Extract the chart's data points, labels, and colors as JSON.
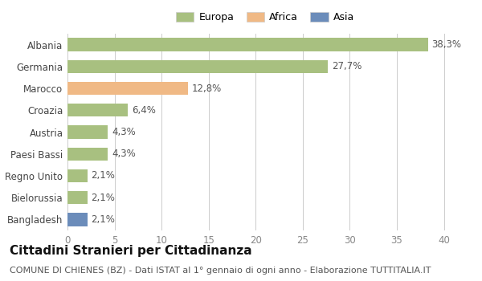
{
  "categories": [
    "Bangladesh",
    "Bielorussia",
    "Regno Unito",
    "Paesi Bassi",
    "Austria",
    "Croazia",
    "Marocco",
    "Germania",
    "Albania"
  ],
  "values": [
    2.1,
    2.1,
    2.1,
    4.3,
    4.3,
    6.4,
    12.8,
    27.7,
    38.3
  ],
  "labels": [
    "2,1%",
    "2,1%",
    "2,1%",
    "4,3%",
    "4,3%",
    "6,4%",
    "12,8%",
    "27,7%",
    "38,3%"
  ],
  "colors": [
    "#6b8cba",
    "#a8c080",
    "#a8c080",
    "#a8c080",
    "#a8c080",
    "#a8c080",
    "#f0b985",
    "#a8c080",
    "#a8c080"
  ],
  "legend_labels": [
    "Europa",
    "Africa",
    "Asia"
  ],
  "legend_colors": [
    "#a8c080",
    "#f0b985",
    "#6b8cba"
  ],
  "title": "Cittadini Stranieri per Cittadinanza",
  "subtitle": "COMUNE DI CHIENES (BZ) - Dati ISTAT al 1° gennaio di ogni anno - Elaborazione TUTTITALIA.IT",
  "xlim": [
    0,
    42
  ],
  "xticks": [
    0,
    5,
    10,
    15,
    20,
    25,
    30,
    35,
    40
  ],
  "bg_color": "#ffffff",
  "grid_color": "#cccccc",
  "bar_height": 0.6,
  "label_fontsize": 8.5,
  "title_fontsize": 11,
  "subtitle_fontsize": 8,
  "tick_fontsize": 8.5
}
